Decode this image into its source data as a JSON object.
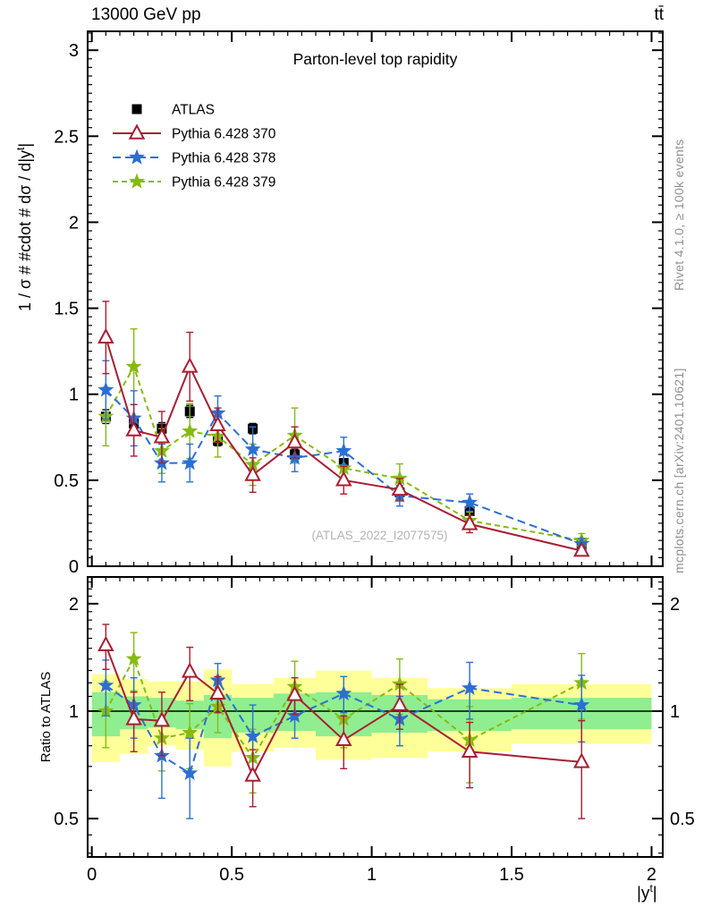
{
  "page": {
    "header_left": "13000 GeV pp",
    "header_right": "tt̄",
    "side_top": "Rivet 4.1.0, ≥ 100k events",
    "side_bottom": "mcplots.cern.ch [arXiv:2401.10621]",
    "watermark": "(ATLAS_2022_I2077575)"
  },
  "chart_data": {
    "type": "line",
    "title": "Parton-level top rapidity",
    "xlabel_parts": {
      "pre": "|y",
      "sup": "t",
      "post": "|"
    },
    "ylabel_main_parts": {
      "pre": "1 / σ # #cdot # dσ / d|y",
      "sup": "t",
      "post": "|"
    },
    "ylabel_ratio": "Ratio to ATLAS",
    "x_range": [
      -0.015,
      2.04
    ],
    "y_range_main": [
      0,
      3.11
    ],
    "y_range_ratio_log": [
      0.39,
      2.375
    ],
    "x_ticks": [
      0,
      0.5,
      1,
      1.5,
      2
    ],
    "x_tick_labels": [
      "0",
      "0.5",
      "1",
      "1.5",
      "2"
    ],
    "y_ticks_main": [
      0,
      0.5,
      1,
      1.5,
      2,
      2.5,
      3
    ],
    "y_tick_labels_main": [
      "0",
      "0.5",
      "1",
      "1.5",
      "2",
      "2.5",
      "3"
    ],
    "y_ticks_ratio": [
      0.5,
      1,
      2
    ],
    "y_tick_labels_ratio": [
      "0.5",
      "1",
      "2"
    ],
    "bin_edges": [
      0,
      0.1,
      0.2,
      0.3,
      0.4,
      0.5,
      0.65,
      0.8,
      1.0,
      1.2,
      1.5,
      2.0
    ],
    "x": [
      0.05,
      0.15,
      0.25,
      0.35,
      0.45,
      0.575,
      0.725,
      0.9,
      1.1,
      1.35,
      1.75
    ],
    "series": [
      {
        "name": "ATLAS",
        "color": "#000000",
        "marker": "square",
        "line": "none",
        "values": [
          0.87,
          0.83,
          0.8,
          0.9,
          0.73,
          0.8,
          0.65,
          0.6,
          0.43,
          0.32,
          0.125
        ],
        "errors": [
          0.04,
          0.04,
          0.035,
          0.035,
          0.03,
          0.03,
          0.03,
          0.025,
          0.02,
          0.02,
          0.012
        ]
      },
      {
        "name": "Pythia 6.428 370",
        "color": "#a81e32",
        "marker": "triangle-open",
        "line": "solid",
        "values": [
          1.33,
          0.79,
          0.75,
          1.16,
          0.82,
          0.53,
          0.72,
          0.5,
          0.445,
          0.245,
          0.09
        ],
        "errors": [
          0.21,
          0.15,
          0.15,
          0.2,
          0.1,
          0.1,
          0.09,
          0.08,
          0.065,
          0.05,
          0.028
        ],
        "ratio": [
          1.53,
          0.95,
          0.94,
          1.29,
          1.12,
          0.66,
          1.11,
          0.83,
          1.04,
          0.77,
          0.72
        ],
        "ratio_errors": [
          0.22,
          0.18,
          0.19,
          0.22,
          0.13,
          0.12,
          0.13,
          0.14,
          0.15,
          0.16,
          0.22
        ]
      },
      {
        "name": "Pythia 6.428 378",
        "color": "#2b6fd4",
        "marker": "star",
        "line": "dash-long",
        "values": [
          1.025,
          0.86,
          0.6,
          0.6,
          0.89,
          0.68,
          0.63,
          0.67,
          0.41,
          0.37,
          0.13
        ],
        "errors": [
          0.17,
          0.16,
          0.11,
          0.11,
          0.1,
          0.13,
          0.08,
          0.08,
          0.06,
          0.05,
          0.03
        ],
        "ratio": [
          1.18,
          1.04,
          0.75,
          0.67,
          1.22,
          0.85,
          0.97,
          1.12,
          0.95,
          1.16,
          1.04
        ],
        "ratio_errors": [
          0.21,
          0.2,
          0.18,
          0.17,
          0.14,
          0.19,
          0.13,
          0.13,
          0.15,
          0.21,
          0.22
        ]
      },
      {
        "name": "Pythia 6.428 379",
        "color": "#86ba12",
        "marker": "star",
        "line": "dash-short",
        "values": [
          0.87,
          1.16,
          0.67,
          0.785,
          0.755,
          0.59,
          0.76,
          0.57,
          0.51,
          0.265,
          0.15
        ],
        "errors": [
          0.17,
          0.22,
          0.13,
          0.16,
          0.12,
          0.12,
          0.16,
          0.1,
          0.085,
          0.05,
          0.04
        ],
        "ratio": [
          1.0,
          1.4,
          0.84,
          0.87,
          1.03,
          0.74,
          1.17,
          0.95,
          1.19,
          0.83,
          1.2
        ],
        "ratio_errors": [
          0.21,
          0.26,
          0.16,
          0.18,
          0.16,
          0.15,
          0.21,
          0.16,
          0.21,
          0.2,
          0.25
        ]
      }
    ],
    "bands": {
      "outer": {
        "color": "#ffff99",
        "lo": [
          0.72,
          0.76,
          0.8,
          0.78,
          0.7,
          0.77,
          0.79,
          0.73,
          0.74,
          0.77,
          0.81
        ],
        "hi": [
          1.27,
          1.23,
          1.21,
          1.21,
          1.31,
          1.19,
          1.24,
          1.3,
          1.24,
          1.16,
          1.19
        ]
      },
      "inner": {
        "color": "#90ee90",
        "lo": [
          0.85,
          0.89,
          0.9,
          0.89,
          0.84,
          0.87,
          0.88,
          0.85,
          0.87,
          0.88,
          0.89
        ],
        "hi": [
          1.13,
          1.1,
          1.09,
          1.07,
          1.11,
          1.09,
          1.12,
          1.13,
          1.11,
          1.08,
          1.09
        ]
      }
    },
    "legend": [
      "ATLAS",
      "Pythia 6.428 370",
      "Pythia 6.428 378",
      "Pythia 6.428 379"
    ],
    "legend_position": "top-left",
    "grid": false
  }
}
